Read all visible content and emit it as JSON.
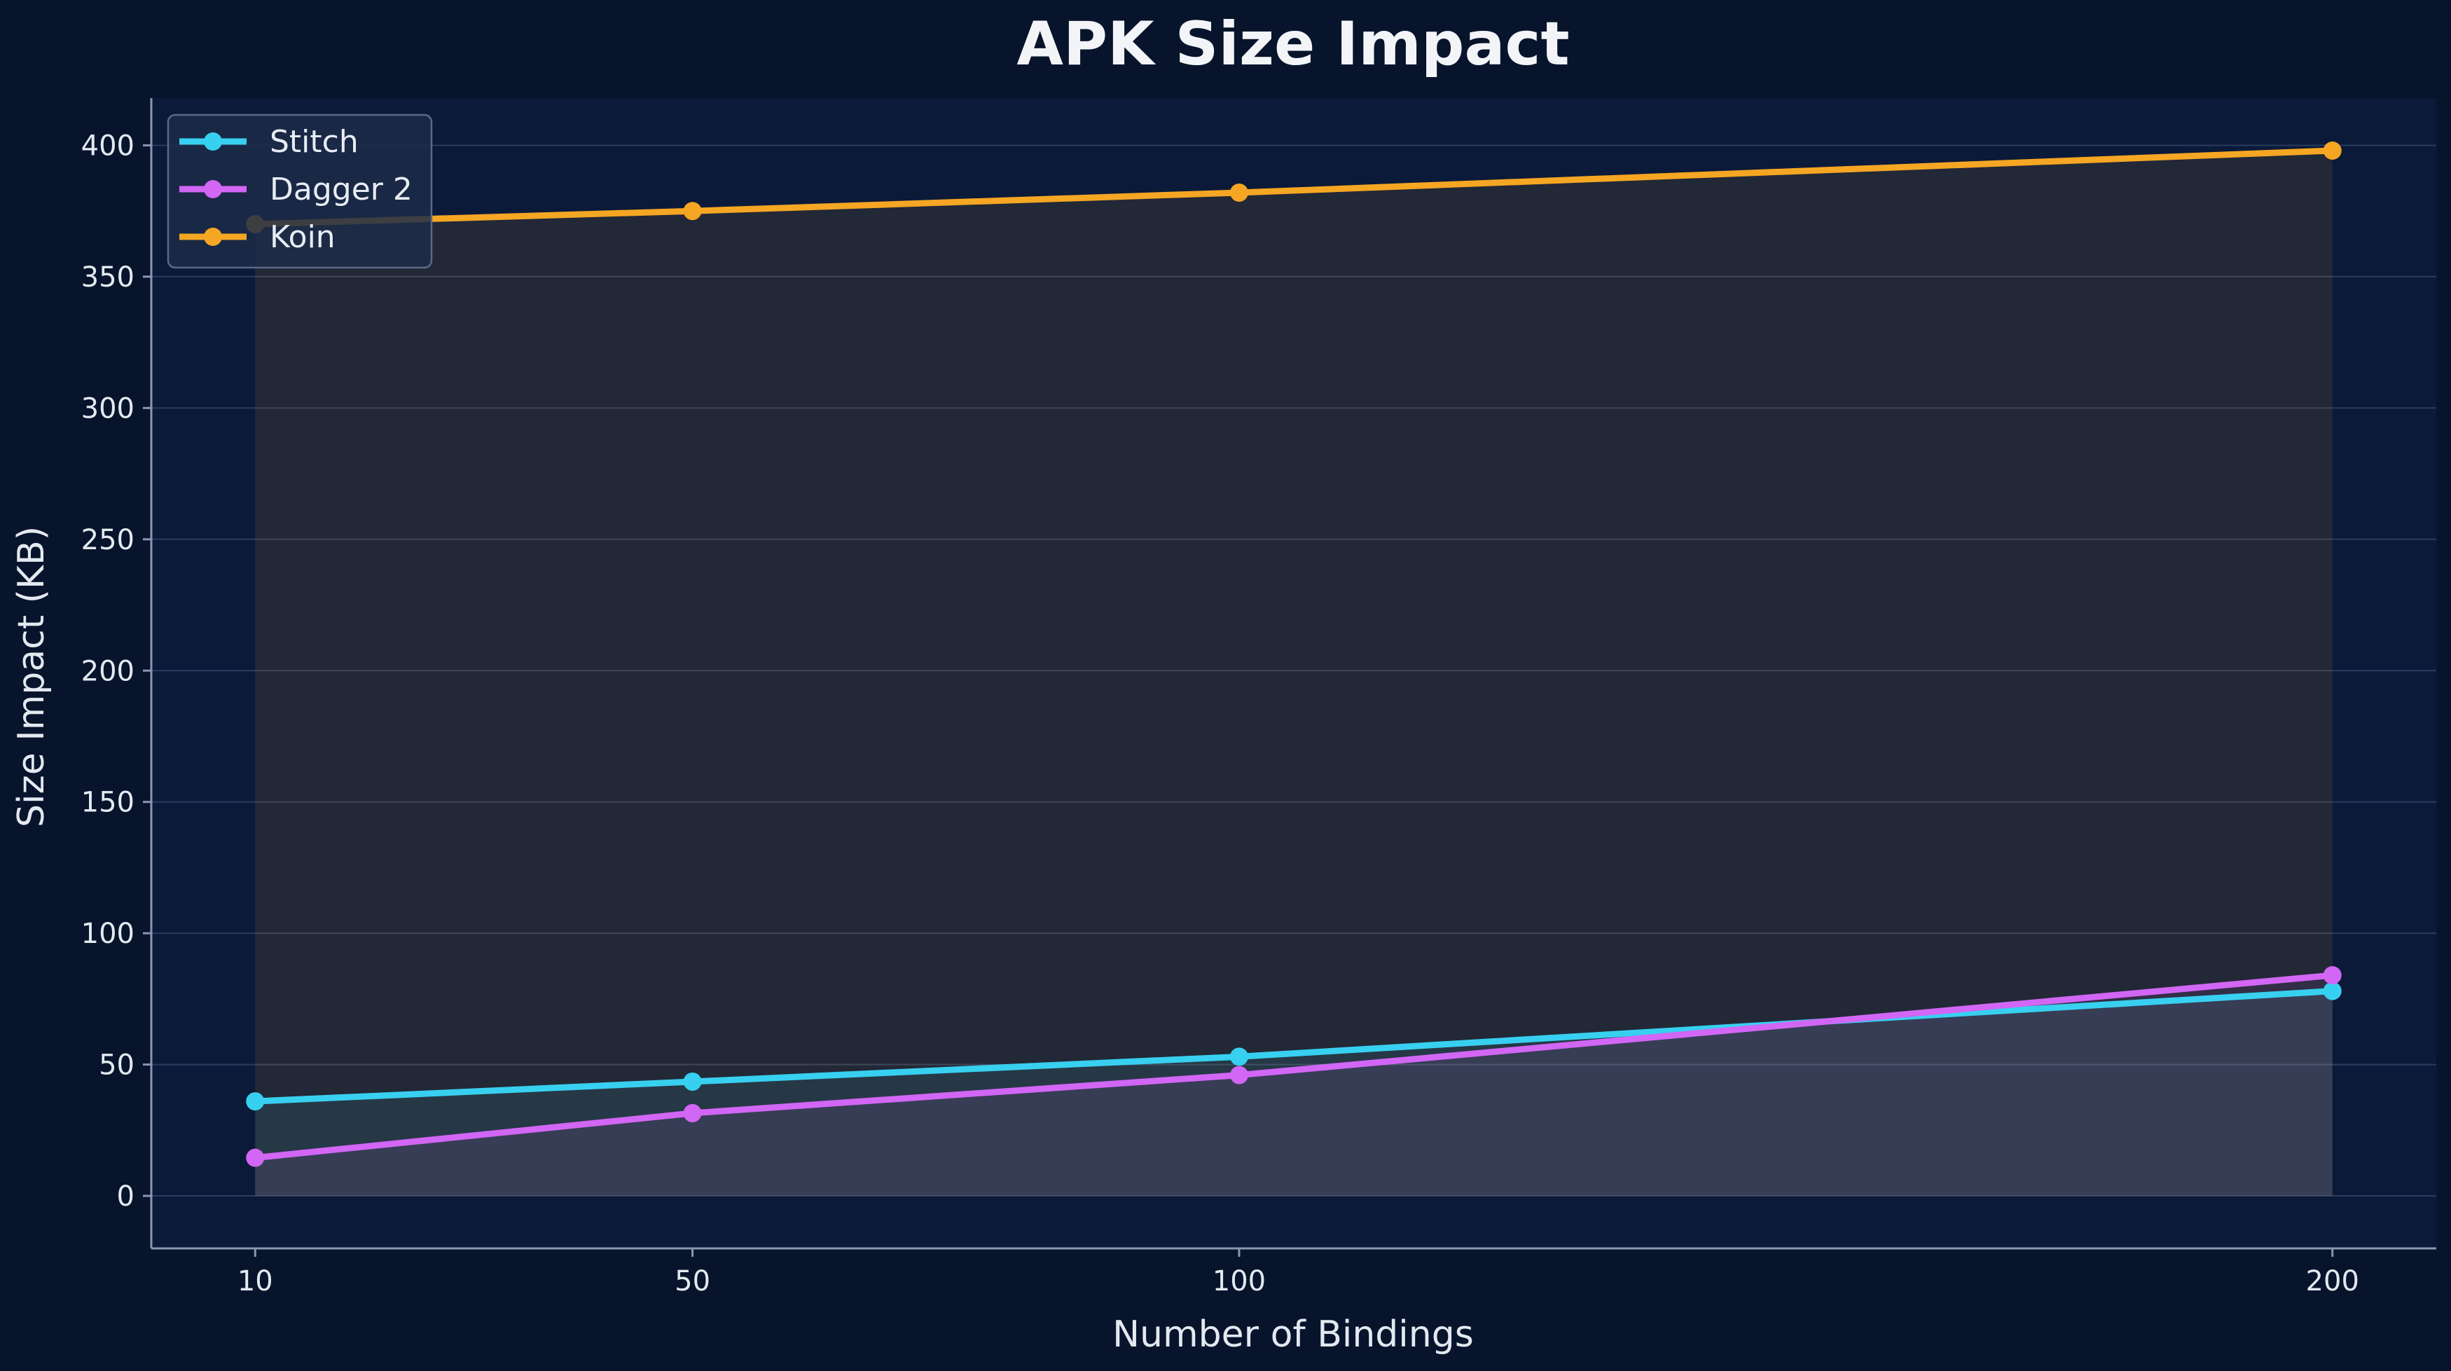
{
  "chart_data": {
    "type": "line",
    "title": "APK Size Impact",
    "xlabel": "Number of Bindings",
    "ylabel": "Size Impact (KB)",
    "x": [
      10,
      50,
      100,
      200
    ],
    "xlim": [
      0.5,
      209.5
    ],
    "ylim": [
      -20,
      418
    ],
    "yticks": [
      0,
      50,
      100,
      150,
      200,
      250,
      300,
      350,
      400
    ],
    "xticks": [
      10,
      50,
      100,
      200
    ],
    "grid": "y-only",
    "legend_position": "top-left",
    "fill_under_lines": true,
    "series": [
      {
        "name": "Stitch",
        "color": "#38d0f0",
        "values": [
          36,
          43.5,
          53,
          78
        ]
      },
      {
        "name": "Dagger 2",
        "color": "#d266f5",
        "values": [
          14.5,
          31.5,
          46,
          84
        ]
      },
      {
        "name": "Koin",
        "color": "#f5a623",
        "values": [
          370,
          375,
          382,
          398
        ]
      }
    ],
    "colors": {
      "background": "#07142b",
      "plot_background": "#0b1a38",
      "grid": "#2a3c5e",
      "axis": "#8b96b4",
      "legend_background": "#1c2b48",
      "legend_border": "#5a6988"
    }
  }
}
